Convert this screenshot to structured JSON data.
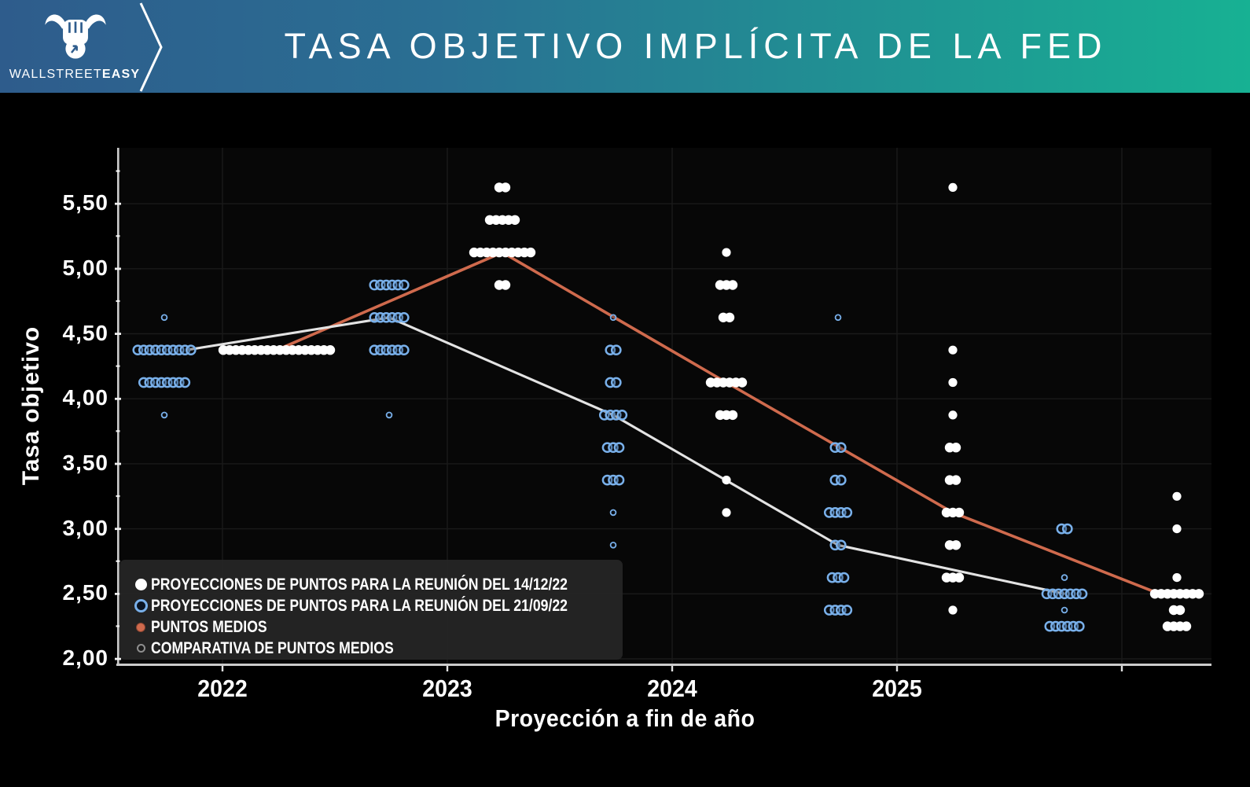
{
  "header": {
    "brand": {
      "regular": "WALLSTREET",
      "bold": "EASY"
    },
    "title": "TASA OBJETIVO IMPLÍCITA DE LA FED"
  },
  "colors": {
    "background": "#000000",
    "plot_bg": "#070707",
    "grid": "#1a1a1a",
    "axis": "#cccccc",
    "dot_white": "#ffffff",
    "dot_blue": "#79b0ea",
    "median_orange": "#cf6a4d",
    "median_gray": "#e3e3e3",
    "header_left": "#2e5c8c",
    "header_right": "#17b193",
    "legend_bg": "#252525"
  },
  "chart_data": {
    "type": "scatter",
    "title": "TASA OBJETIVO IMPLÍCITA DE LA FED",
    "xlabel": "Proyección a fin de año",
    "ylabel": "Tasa objetivo",
    "x_categories": [
      "2022",
      "2023",
      "2024",
      "2025"
    ],
    "y_ticks": [
      "5,50",
      "5,00",
      "4,50",
      "4,00",
      "3,50",
      "3,00",
      "2,50",
      "2,00"
    ],
    "ylim": [
      2.0,
      5.9
    ],
    "grid": true,
    "legend_position": "bottom-left",
    "series": [
      {
        "name": "PROYECCIONES DE PUNTOS PARA LA REUNIÓN DEL 14/12/22",
        "meeting": "dec",
        "marker": "white-filled",
        "groups": [
          {
            "col": "2022",
            "rate": 4.375,
            "count": 18
          },
          {
            "col": "2023",
            "rate": 5.625,
            "count": 2
          },
          {
            "col": "2023",
            "rate": 5.375,
            "count": 5
          },
          {
            "col": "2023",
            "rate": 5.125,
            "count": 10
          },
          {
            "col": "2023",
            "rate": 4.875,
            "count": 2
          },
          {
            "col": "2024",
            "rate": 5.125,
            "count": 1
          },
          {
            "col": "2024",
            "rate": 4.875,
            "count": 3
          },
          {
            "col": "2024",
            "rate": 4.625,
            "count": 2
          },
          {
            "col": "2024",
            "rate": 4.125,
            "count": 6
          },
          {
            "col": "2024",
            "rate": 3.875,
            "count": 3
          },
          {
            "col": "2024",
            "rate": 3.375,
            "count": 1
          },
          {
            "col": "2024",
            "rate": 3.125,
            "count": 1
          },
          {
            "col": "2025",
            "rate": 5.625,
            "count": 1
          },
          {
            "col": "2025",
            "rate": 4.375,
            "count": 1
          },
          {
            "col": "2025",
            "rate": 4.125,
            "count": 1
          },
          {
            "col": "2025",
            "rate": 3.875,
            "count": 1
          },
          {
            "col": "2025",
            "rate": 3.625,
            "count": 2
          },
          {
            "col": "2025",
            "rate": 3.375,
            "count": 2
          },
          {
            "col": "2025",
            "rate": 3.125,
            "count": 3
          },
          {
            "col": "2025",
            "rate": 2.875,
            "count": 2
          },
          {
            "col": "2025",
            "rate": 2.625,
            "count": 3
          },
          {
            "col": "2025",
            "rate": 2.375,
            "count": 1
          },
          {
            "col": "lr",
            "rate": 3.25,
            "count": 1
          },
          {
            "col": "lr",
            "rate": 3.0,
            "count": 1
          },
          {
            "col": "lr",
            "rate": 2.625,
            "count": 1
          },
          {
            "col": "lr",
            "rate": 2.5,
            "count": 8
          },
          {
            "col": "lr",
            "rate": 2.375,
            "count": 2
          },
          {
            "col": "lr",
            "rate": 2.25,
            "count": 4
          }
        ]
      },
      {
        "name": "PROYECCIONES DE PUNTOS PARA LA REUNIÓN DEL 21/09/22",
        "meeting": "sep",
        "marker": "blue-open",
        "groups": [
          {
            "col": "2022",
            "rate": 4.625,
            "count": 1,
            "small": true
          },
          {
            "col": "2022",
            "rate": 4.375,
            "count": 10
          },
          {
            "col": "2022",
            "rate": 4.125,
            "count": 8
          },
          {
            "col": "2022",
            "rate": 3.875,
            "count": 1,
            "small": true
          },
          {
            "col": "2023",
            "rate": 4.875,
            "count": 6
          },
          {
            "col": "2023",
            "rate": 4.625,
            "count": 6
          },
          {
            "col": "2023",
            "rate": 4.375,
            "count": 6
          },
          {
            "col": "2023",
            "rate": 3.875,
            "count": 1,
            "small": true
          },
          {
            "col": "2024",
            "rate": 4.625,
            "count": 1,
            "small": true
          },
          {
            "col": "2024",
            "rate": 4.375,
            "count": 2
          },
          {
            "col": "2024",
            "rate": 4.125,
            "count": 2
          },
          {
            "col": "2024",
            "rate": 3.875,
            "count": 4
          },
          {
            "col": "2024",
            "rate": 3.625,
            "count": 3
          },
          {
            "col": "2024",
            "rate": 3.375,
            "count": 3
          },
          {
            "col": "2024",
            "rate": 3.125,
            "count": 1,
            "small": true
          },
          {
            "col": "2024",
            "rate": 2.875,
            "count": 1,
            "small": true
          },
          {
            "col": "2025",
            "rate": 4.625,
            "count": 1,
            "small": true
          },
          {
            "col": "2025",
            "rate": 3.625,
            "count": 2
          },
          {
            "col": "2025",
            "rate": 3.375,
            "count": 2
          },
          {
            "col": "2025",
            "rate": 3.125,
            "count": 4
          },
          {
            "col": "2025",
            "rate": 2.875,
            "count": 2
          },
          {
            "col": "2025",
            "rate": 2.625,
            "count": 3
          },
          {
            "col": "2025",
            "rate": 2.375,
            "count": 4
          },
          {
            "col": "lr",
            "rate": 3.0,
            "count": 2
          },
          {
            "col": "lr",
            "rate": 2.625,
            "count": 1,
            "small": true
          },
          {
            "col": "lr",
            "rate": 2.5,
            "count": 7
          },
          {
            "col": "lr",
            "rate": 2.375,
            "count": 1,
            "small": true
          },
          {
            "col": "lr",
            "rate": 2.25,
            "count": 6
          }
        ]
      }
    ],
    "median_lines": [
      {
        "name": "PUNTOS MEDIOS",
        "columns": "dec",
        "color": "#cf6a4d",
        "points": [
          {
            "col": "2022",
            "rate": 4.375
          },
          {
            "col": "2023",
            "rate": 5.125
          },
          {
            "col": "2024",
            "rate": 4.125
          },
          {
            "col": "2025",
            "rate": 3.125
          },
          {
            "col": "lr",
            "rate": 2.5
          }
        ]
      },
      {
        "name": "COMPARATIVA DE PUNTOS MEDIOS",
        "columns": "sep",
        "color": "#e3e3e3",
        "points": [
          {
            "col": "2022",
            "rate": 4.375
          },
          {
            "col": "2023",
            "rate": 4.625
          },
          {
            "col": "2024",
            "rate": 3.875
          },
          {
            "col": "2025",
            "rate": 2.875
          },
          {
            "col": "lr",
            "rate": 2.5
          }
        ]
      }
    ]
  },
  "legend": {
    "items": [
      {
        "label": "PROYECCIONES DE PUNTOS PARA LA REUNIÓN DEL 14/12/22",
        "marker": "white-filled"
      },
      {
        "label": "PROYECCIONES DE PUNTOS PARA LA REUNIÓN DEL 21/09/22",
        "marker": "blue-open"
      },
      {
        "label": "PUNTOS MEDIOS",
        "marker": "orange-dot"
      },
      {
        "label": "COMPARATIVA DE PUNTOS MEDIOS",
        "marker": "gray-dot"
      }
    ]
  }
}
